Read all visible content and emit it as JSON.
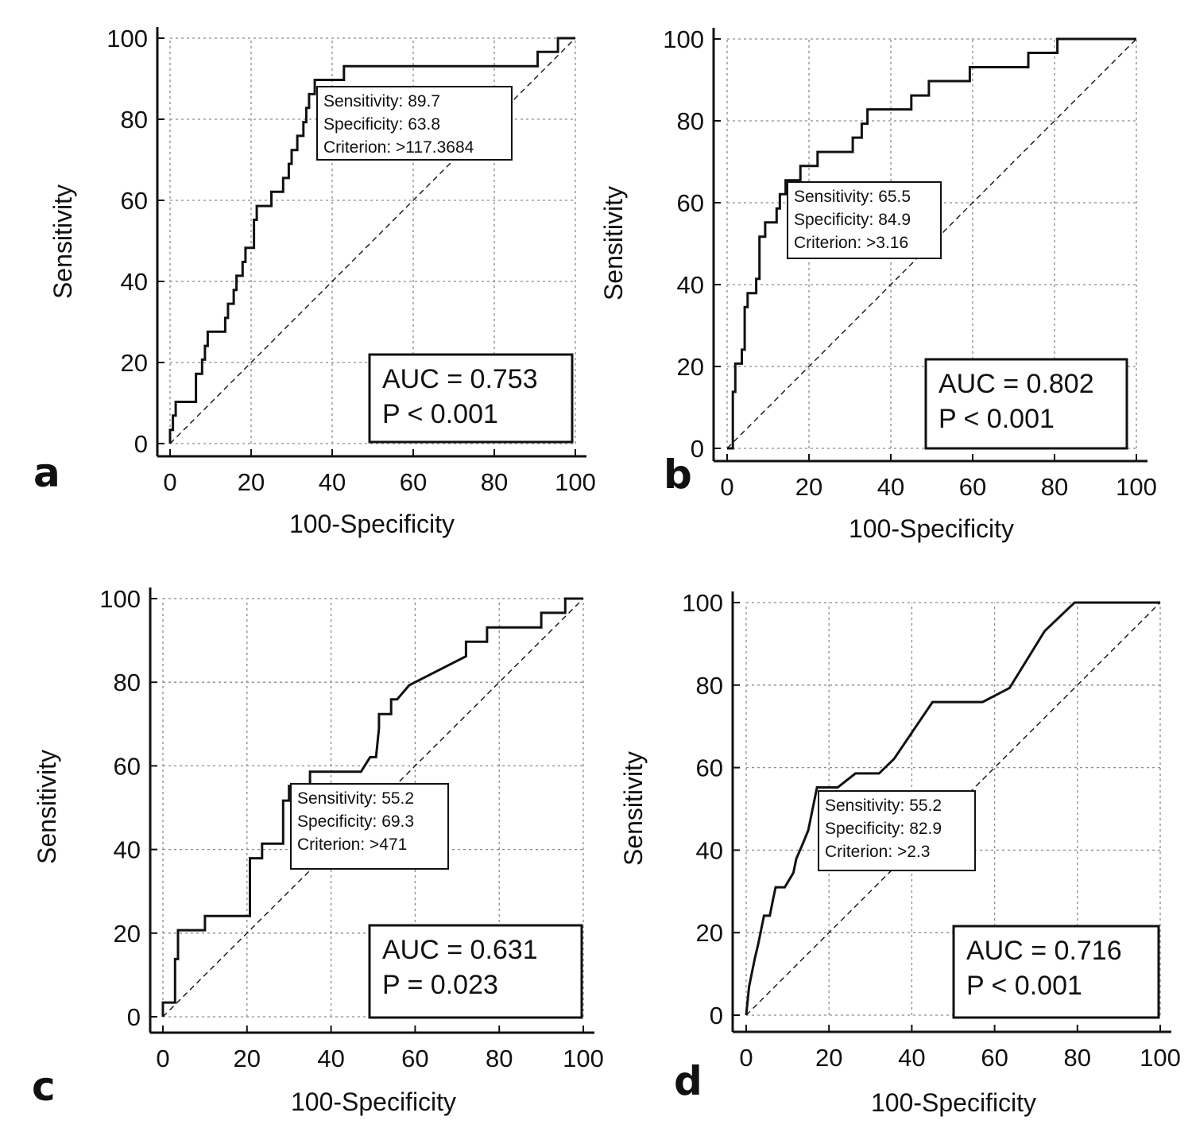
{
  "chart_data": [
    {
      "type": "line",
      "panel_label": "a",
      "xlabel": "100-Specificity",
      "ylabel": "Sensitivity",
      "xlim": [
        0,
        100
      ],
      "ylim": [
        0,
        100
      ],
      "xticks": [
        "0",
        "20",
        "40",
        "60",
        "80",
        "100"
      ],
      "yticks": [
        "0",
        "20",
        "40",
        "60",
        "80",
        "100"
      ],
      "grid": true,
      "series": [
        {
          "line_style": "solid",
          "points": [
            [
              0,
              0
            ],
            [
              0,
              3.4
            ],
            [
              0.7,
              3.4
            ],
            [
              0.7,
              6.9
            ],
            [
              1.4,
              6.9
            ],
            [
              1.4,
              10.3
            ],
            [
              6.4,
              10.3
            ],
            [
              6.4,
              13.8
            ],
            [
              6.4,
              17.2
            ],
            [
              7.9,
              17.2
            ],
            [
              7.9,
              20.7
            ],
            [
              8.6,
              20.7
            ],
            [
              8.6,
              24.1
            ],
            [
              9.3,
              24.1
            ],
            [
              9.3,
              27.6
            ],
            [
              13.6,
              27.6
            ],
            [
              13.6,
              31
            ],
            [
              14.3,
              31
            ],
            [
              14.3,
              34.5
            ],
            [
              15.7,
              34.5
            ],
            [
              15.7,
              37.9
            ],
            [
              16.4,
              37.9
            ],
            [
              16.4,
              41.4
            ],
            [
              17.9,
              41.4
            ],
            [
              17.9,
              44.8
            ],
            [
              18.6,
              44.8
            ],
            [
              18.6,
              48.3
            ],
            [
              20.7,
              48.3
            ],
            [
              20.7,
              51.7
            ],
            [
              20.7,
              55.2
            ],
            [
              21.4,
              55.2
            ],
            [
              21.4,
              58.6
            ],
            [
              25,
              58.6
            ],
            [
              25,
              62.1
            ],
            [
              27.9,
              62.1
            ],
            [
              27.9,
              65.5
            ],
            [
              29.3,
              65.5
            ],
            [
              29.3,
              69
            ],
            [
              30,
              69
            ],
            [
              30,
              72.4
            ],
            [
              31.4,
              72.4
            ],
            [
              31.4,
              75.9
            ],
            [
              32.9,
              75.9
            ],
            [
              32.9,
              79.3
            ],
            [
              33.6,
              79.3
            ],
            [
              33.6,
              82.8
            ],
            [
              34.3,
              82.8
            ],
            [
              34.3,
              86.2
            ],
            [
              35.7,
              86.2
            ],
            [
              35.7,
              89.7
            ],
            [
              42.9,
              89.7
            ],
            [
              42.9,
              93.1
            ],
            [
              90.7,
              93.1
            ],
            [
              90.7,
              96.6
            ],
            [
              95.7,
              96.6
            ],
            [
              95.7,
              100
            ],
            [
              100,
              100
            ]
          ]
        },
        {
          "line_style": "dashed",
          "points": [
            [
              0,
              0
            ],
            [
              100,
              100
            ]
          ]
        }
      ],
      "annotation_cutoff": [
        "Sensitivity: 89.7",
        "Specificity: 63.8",
        "Criterion: >117.3684"
      ],
      "annotation_auc": [
        "AUC = 0.753",
        "P < 0.001"
      ]
    },
    {
      "type": "line",
      "panel_label": "b",
      "xlabel": "100-Specificity",
      "ylabel": "Sensitivity",
      "xlim": [
        0,
        100
      ],
      "ylim": [
        0,
        100
      ],
      "xticks": [
        "0",
        "20",
        "40",
        "60",
        "80",
        "100"
      ],
      "yticks": [
        "0",
        "20",
        "40",
        "60",
        "80",
        "100"
      ],
      "grid": true,
      "series": [
        {
          "line_style": "solid",
          "points": [
            [
              0,
              0
            ],
            [
              1.4,
              0
            ],
            [
              1.4,
              6.9
            ],
            [
              1.4,
              13.8
            ],
            [
              2,
              13.8
            ],
            [
              2,
              20.7
            ],
            [
              3.6,
              20.7
            ],
            [
              3.6,
              24.1
            ],
            [
              4.3,
              24.1
            ],
            [
              4.3,
              31
            ],
            [
              4.3,
              34.5
            ],
            [
              5,
              34.5
            ],
            [
              5,
              37.9
            ],
            [
              7.1,
              37.9
            ],
            [
              7.1,
              41.4
            ],
            [
              7.9,
              41.4
            ],
            [
              7.9,
              48.3
            ],
            [
              7.9,
              51.7
            ],
            [
              9.3,
              51.7
            ],
            [
              9.3,
              55.2
            ],
            [
              12.1,
              55.2
            ],
            [
              12.1,
              58.6
            ],
            [
              12.9,
              58.6
            ],
            [
              12.9,
              62.1
            ],
            [
              14.3,
              62.1
            ],
            [
              14.3,
              65.5
            ],
            [
              17.9,
              65.5
            ],
            [
              17.9,
              69
            ],
            [
              22.1,
              69
            ],
            [
              22.1,
              72.4
            ],
            [
              30.7,
              72.4
            ],
            [
              30.7,
              75.9
            ],
            [
              32.9,
              75.9
            ],
            [
              32.9,
              79.3
            ],
            [
              34.3,
              79.3
            ],
            [
              34.3,
              82.8
            ],
            [
              45,
              82.8
            ],
            [
              45,
              86.2
            ],
            [
              49.3,
              86.2
            ],
            [
              49.3,
              89.7
            ],
            [
              59.3,
              89.7
            ],
            [
              59.3,
              93.1
            ],
            [
              73.6,
              93.1
            ],
            [
              73.6,
              96.6
            ],
            [
              80.7,
              96.6
            ],
            [
              80.7,
              100
            ],
            [
              100,
              100
            ]
          ]
        },
        {
          "line_style": "dashed",
          "points": [
            [
              0,
              0
            ],
            [
              100,
              100
            ]
          ]
        }
      ],
      "annotation_cutoff": [
        "Sensitivity: 65.5",
        "Specificity: 84.9",
        "Criterion: >3.16"
      ],
      "annotation_auc": [
        "AUC = 0.802",
        "P < 0.001"
      ]
    },
    {
      "type": "line",
      "panel_label": "c",
      "xlabel": "100-Specificity",
      "ylabel": "Sensitivity",
      "xlim": [
        0,
        100
      ],
      "ylim": [
        0,
        100
      ],
      "xticks": [
        "0",
        "20",
        "40",
        "60",
        "80",
        "100"
      ],
      "yticks": [
        "0",
        "20",
        "40",
        "60",
        "80",
        "100"
      ],
      "grid": true,
      "series": [
        {
          "line_style": "solid",
          "points": [
            [
              0,
              0
            ],
            [
              0,
              3.4
            ],
            [
              2.9,
              3.4
            ],
            [
              2.9,
              6.9
            ],
            [
              2.9,
              13.8
            ],
            [
              3.6,
              13.8
            ],
            [
              3.6,
              17.2
            ],
            [
              3.6,
              20.7
            ],
            [
              10,
              20.7
            ],
            [
              10,
              24.1
            ],
            [
              20.7,
              24.1
            ],
            [
              20.7,
              31
            ],
            [
              20.7,
              37.9
            ],
            [
              23.6,
              37.9
            ],
            [
              23.6,
              41.4
            ],
            [
              28.6,
              41.4
            ],
            [
              28.6,
              48.3
            ],
            [
              28.6,
              51.7
            ],
            [
              30,
              51.7
            ],
            [
              30,
              55.2
            ],
            [
              35,
              55.2
            ],
            [
              35,
              58.6
            ],
            [
              47.1,
              58.6
            ],
            [
              49.3,
              62.1
            ],
            [
              50.7,
              62.1
            ],
            [
              51.4,
              69
            ],
            [
              51.4,
              72.4
            ],
            [
              54.3,
              72.4
            ],
            [
              54.3,
              75.9
            ],
            [
              55.7,
              75.9
            ],
            [
              58.6,
              79.3
            ],
            [
              72.1,
              86.2
            ],
            [
              72.1,
              89.7
            ],
            [
              77.1,
              89.7
            ],
            [
              77.1,
              93.1
            ],
            [
              90,
              93.1
            ],
            [
              90,
              96.6
            ],
            [
              95.7,
              96.6
            ],
            [
              95.7,
              100
            ],
            [
              100,
              100
            ]
          ]
        },
        {
          "line_style": "dashed",
          "points": [
            [
              0,
              0
            ],
            [
              100,
              100
            ]
          ]
        }
      ],
      "annotation_cutoff": [
        "Sensitivity: 55.2",
        "Specificity: 69.3",
        "Criterion: >471"
      ],
      "annotation_auc": [
        "AUC = 0.631",
        "P = 0.023"
      ]
    },
    {
      "type": "line",
      "panel_label": "d",
      "xlabel": "100-Specificity",
      "ylabel": "Sensitivity",
      "xlim": [
        0,
        100
      ],
      "ylim": [
        0,
        100
      ],
      "xticks": [
        "0",
        "20",
        "40",
        "60",
        "80",
        "100"
      ],
      "yticks": [
        "0",
        "20",
        "40",
        "60",
        "80",
        "100"
      ],
      "grid": true,
      "series": [
        {
          "line_style": "solid",
          "points": [
            [
              0,
              0
            ],
            [
              0.7,
              6.9
            ],
            [
              2.1,
              13.8
            ],
            [
              2.9,
              17.2
            ],
            [
              3.6,
              20.7
            ],
            [
              4.3,
              24.1
            ],
            [
              5.7,
              24.1
            ],
            [
              6.4,
              27.6
            ],
            [
              7.1,
              31
            ],
            [
              9.3,
              31
            ],
            [
              11.4,
              34.5
            ],
            [
              12.1,
              37.9
            ],
            [
              13.6,
              41.4
            ],
            [
              15,
              44.8
            ],
            [
              16.4,
              51.7
            ],
            [
              17.1,
              55.2
            ],
            [
              22.1,
              55.2
            ],
            [
              26.4,
              58.6
            ],
            [
              32.1,
              58.6
            ],
            [
              35.7,
              62.1
            ],
            [
              45,
              75.9
            ],
            [
              57.1,
              75.9
            ],
            [
              63.6,
              79.3
            ],
            [
              72.1,
              93.1
            ],
            [
              79.3,
              100
            ],
            [
              100,
              100
            ]
          ]
        },
        {
          "line_style": "dashed",
          "points": [
            [
              0,
              0
            ],
            [
              100,
              100
            ]
          ]
        }
      ],
      "annotation_cutoff": [
        "Sensitivity: 55.2",
        "Specificity: 82.9",
        "Criterion: >2.3"
      ],
      "annotation_auc": [
        "AUC = 0.716",
        "P < 0.001"
      ]
    }
  ]
}
